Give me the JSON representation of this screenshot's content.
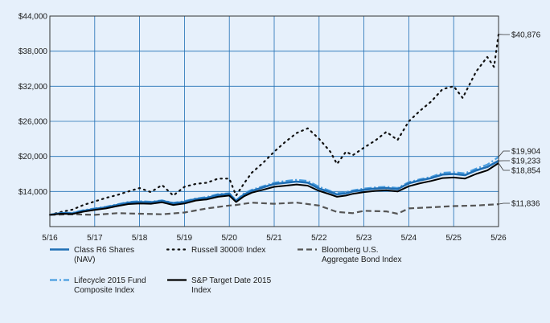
{
  "chart_data": {
    "type": "line",
    "title": "",
    "xlabel": "",
    "ylabel": "",
    "x_tick_labels": [
      "5/16",
      "5/17",
      "5/18",
      "5/19",
      "5/20",
      "5/21",
      "5/22",
      "5/23",
      "5/24",
      "5/25",
      "5/26"
    ],
    "y_tick_labels": [
      "$14,000",
      "$20,000",
      "$26,000",
      "$32,000",
      "$38,000",
      "$44,000"
    ],
    "y_ticks": [
      14000,
      20000,
      26000,
      32000,
      38000,
      44000
    ],
    "ylim": [
      8000,
      44000
    ],
    "xlim": [
      2016,
      2026
    ],
    "grid": true,
    "legend_position": "bottom",
    "series": [
      {
        "name": "Class R6 Shares (NAV)",
        "color": "#1f6fb5",
        "dash": "solid",
        "end_label": "$19,233",
        "end_value": 19233,
        "points": [
          [
            2016.0,
            10000
          ],
          [
            2016.25,
            10300
          ],
          [
            2016.5,
            10250
          ],
          [
            2016.75,
            10700
          ],
          [
            2017.0,
            11000
          ],
          [
            2017.25,
            11300
          ],
          [
            2017.5,
            11700
          ],
          [
            2017.75,
            12100
          ],
          [
            2018.0,
            12200
          ],
          [
            2018.25,
            12150
          ],
          [
            2018.5,
            12400
          ],
          [
            2018.75,
            12000
          ],
          [
            2019.0,
            12200
          ],
          [
            2019.25,
            12700
          ],
          [
            2019.5,
            12900
          ],
          [
            2019.75,
            13400
          ],
          [
            2020.0,
            13600
          ],
          [
            2020.15,
            12400
          ],
          [
            2020.33,
            13500
          ],
          [
            2020.5,
            14100
          ],
          [
            2020.75,
            14700
          ],
          [
            2021.0,
            15300
          ],
          [
            2021.25,
            15500
          ],
          [
            2021.5,
            15700
          ],
          [
            2021.75,
            15500
          ],
          [
            2022.0,
            14500
          ],
          [
            2022.25,
            13900
          ],
          [
            2022.4,
            13500
          ],
          [
            2022.6,
            13700
          ],
          [
            2022.75,
            14000
          ],
          [
            2023.0,
            14300
          ],
          [
            2023.25,
            14500
          ],
          [
            2023.5,
            14600
          ],
          [
            2023.75,
            14400
          ],
          [
            2024.0,
            15400
          ],
          [
            2024.25,
            15900
          ],
          [
            2024.5,
            16300
          ],
          [
            2024.75,
            16900
          ],
          [
            2025.0,
            17000
          ],
          [
            2025.25,
            16800
          ],
          [
            2025.5,
            17600
          ],
          [
            2025.75,
            18200
          ],
          [
            2026.0,
            19233
          ]
        ]
      },
      {
        "name": "Russell 3000® Index",
        "color": "#111111",
        "dash": "dotted",
        "end_label": "$40,876",
        "end_value": 40876,
        "points": [
          [
            2016.0,
            10000
          ],
          [
            2016.25,
            10500
          ],
          [
            2016.5,
            10900
          ],
          [
            2016.75,
            11700
          ],
          [
            2017.0,
            12300
          ],
          [
            2017.25,
            12900
          ],
          [
            2017.5,
            13400
          ],
          [
            2017.75,
            14000
          ],
          [
            2018.0,
            14600
          ],
          [
            2018.25,
            13900
          ],
          [
            2018.5,
            15100
          ],
          [
            2018.75,
            13300
          ],
          [
            2019.0,
            14800
          ],
          [
            2019.25,
            15300
          ],
          [
            2019.5,
            15500
          ],
          [
            2019.75,
            16200
          ],
          [
            2020.0,
            16200
          ],
          [
            2020.15,
            13300
          ],
          [
            2020.33,
            15400
          ],
          [
            2020.5,
            17200
          ],
          [
            2020.75,
            18900
          ],
          [
            2021.0,
            20800
          ],
          [
            2021.25,
            22500
          ],
          [
            2021.5,
            24000
          ],
          [
            2021.75,
            24800
          ],
          [
            2022.0,
            23000
          ],
          [
            2022.25,
            20800
          ],
          [
            2022.4,
            18700
          ],
          [
            2022.6,
            20800
          ],
          [
            2022.75,
            20200
          ],
          [
            2023.0,
            21500
          ],
          [
            2023.25,
            22700
          ],
          [
            2023.5,
            24200
          ],
          [
            2023.75,
            22800
          ],
          [
            2024.0,
            26000
          ],
          [
            2024.25,
            27800
          ],
          [
            2024.5,
            29400
          ],
          [
            2024.75,
            31500
          ],
          [
            2025.0,
            32000
          ],
          [
            2025.2,
            30000
          ],
          [
            2025.5,
            34500
          ],
          [
            2025.75,
            37000
          ],
          [
            2025.9,
            35300
          ],
          [
            2026.0,
            40876
          ]
        ]
      },
      {
        "name": "Bloomberg U.S. Aggregate Bond Index",
        "color": "#555555",
        "dash": "dashed",
        "end_label": "$11,836",
        "end_value": 11836,
        "points": [
          [
            2016.0,
            10000
          ],
          [
            2016.5,
            10100
          ],
          [
            2017.0,
            10000
          ],
          [
            2017.5,
            10300
          ],
          [
            2018.0,
            10200
          ],
          [
            2018.5,
            10100
          ],
          [
            2019.0,
            10400
          ],
          [
            2019.5,
            11100
          ],
          [
            2020.0,
            11600
          ],
          [
            2020.15,
            11700
          ],
          [
            2020.5,
            12100
          ],
          [
            2021.0,
            11900
          ],
          [
            2021.5,
            12100
          ],
          [
            2022.0,
            11600
          ],
          [
            2022.4,
            10500
          ],
          [
            2022.75,
            10300
          ],
          [
            2023.0,
            10700
          ],
          [
            2023.5,
            10600
          ],
          [
            2023.75,
            10200
          ],
          [
            2024.0,
            11100
          ],
          [
            2024.5,
            11300
          ],
          [
            2025.0,
            11500
          ],
          [
            2025.5,
            11600
          ],
          [
            2026.0,
            11836
          ]
        ]
      },
      {
        "name": "Lifecycle 2015 Fund Composite Index",
        "color": "#4a9ee0",
        "dash": "dashdot",
        "end_label": "$19,904",
        "end_value": 19904,
        "points": [
          [
            2016.0,
            10000
          ],
          [
            2016.25,
            10350
          ],
          [
            2016.5,
            10350
          ],
          [
            2016.75,
            10800
          ],
          [
            2017.0,
            11100
          ],
          [
            2017.25,
            11400
          ],
          [
            2017.5,
            11800
          ],
          [
            2017.75,
            12200
          ],
          [
            2018.0,
            12350
          ],
          [
            2018.25,
            12250
          ],
          [
            2018.5,
            12500
          ],
          [
            2018.75,
            12050
          ],
          [
            2019.0,
            12350
          ],
          [
            2019.25,
            12800
          ],
          [
            2019.5,
            13050
          ],
          [
            2019.75,
            13550
          ],
          [
            2020.0,
            13700
          ],
          [
            2020.15,
            12500
          ],
          [
            2020.33,
            13700
          ],
          [
            2020.5,
            14300
          ],
          [
            2020.75,
            14900
          ],
          [
            2021.0,
            15500
          ],
          [
            2021.25,
            15800
          ],
          [
            2021.5,
            16000
          ],
          [
            2021.75,
            15800
          ],
          [
            2022.0,
            14800
          ],
          [
            2022.25,
            14100
          ],
          [
            2022.4,
            13700
          ],
          [
            2022.6,
            13900
          ],
          [
            2022.75,
            14200
          ],
          [
            2023.0,
            14500
          ],
          [
            2023.25,
            14700
          ],
          [
            2023.5,
            14800
          ],
          [
            2023.75,
            14600
          ],
          [
            2024.0,
            15600
          ],
          [
            2024.25,
            16100
          ],
          [
            2024.5,
            16500
          ],
          [
            2024.75,
            17200
          ],
          [
            2025.0,
            17300
          ],
          [
            2025.25,
            17100
          ],
          [
            2025.5,
            17900
          ],
          [
            2025.75,
            18600
          ],
          [
            2026.0,
            19904
          ]
        ]
      },
      {
        "name": "S&P Target Date 2015 Index",
        "color": "#000000",
        "dash": "solid",
        "end_label": "$18,854",
        "end_value": 18854,
        "points": [
          [
            2016.0,
            10000
          ],
          [
            2016.25,
            10200
          ],
          [
            2016.5,
            10150
          ],
          [
            2016.75,
            10550
          ],
          [
            2017.0,
            10850
          ],
          [
            2017.25,
            11100
          ],
          [
            2017.5,
            11500
          ],
          [
            2017.75,
            11850
          ],
          [
            2018.0,
            11950
          ],
          [
            2018.25,
            11900
          ],
          [
            2018.5,
            12150
          ],
          [
            2018.75,
            11700
          ],
          [
            2019.0,
            11950
          ],
          [
            2019.25,
            12450
          ],
          [
            2019.5,
            12650
          ],
          [
            2019.75,
            13100
          ],
          [
            2020.0,
            13300
          ],
          [
            2020.15,
            12200
          ],
          [
            2020.33,
            13200
          ],
          [
            2020.5,
            13800
          ],
          [
            2020.75,
            14300
          ],
          [
            2021.0,
            14800
          ],
          [
            2021.25,
            15000
          ],
          [
            2021.5,
            15200
          ],
          [
            2021.75,
            15000
          ],
          [
            2022.0,
            14100
          ],
          [
            2022.25,
            13500
          ],
          [
            2022.4,
            13100
          ],
          [
            2022.6,
            13300
          ],
          [
            2022.75,
            13600
          ],
          [
            2023.0,
            13900
          ],
          [
            2023.25,
            14100
          ],
          [
            2023.5,
            14200
          ],
          [
            2023.75,
            14000
          ],
          [
            2024.0,
            14900
          ],
          [
            2024.25,
            15400
          ],
          [
            2024.5,
            15800
          ],
          [
            2024.75,
            16300
          ],
          [
            2025.0,
            16400
          ],
          [
            2025.25,
            16200
          ],
          [
            2025.5,
            17000
          ],
          [
            2025.75,
            17600
          ],
          [
            2026.0,
            18854
          ]
        ]
      }
    ],
    "legend": [
      {
        "lines": [
          "Class R6 Shares",
          "(NAV)"
        ],
        "series": 0
      },
      {
        "lines": [
          "Russell 3000® Index"
        ],
        "series": 1
      },
      {
        "lines": [
          "Bloomberg U.S.",
          "Aggregate Bond Index"
        ],
        "series": 2
      },
      {
        "lines": [
          "Lifecycle 2015 Fund",
          "Composite Index"
        ],
        "series": 3
      },
      {
        "lines": [
          "S&P Target Date 2015",
          "Index"
        ],
        "series": 4
      }
    ]
  }
}
